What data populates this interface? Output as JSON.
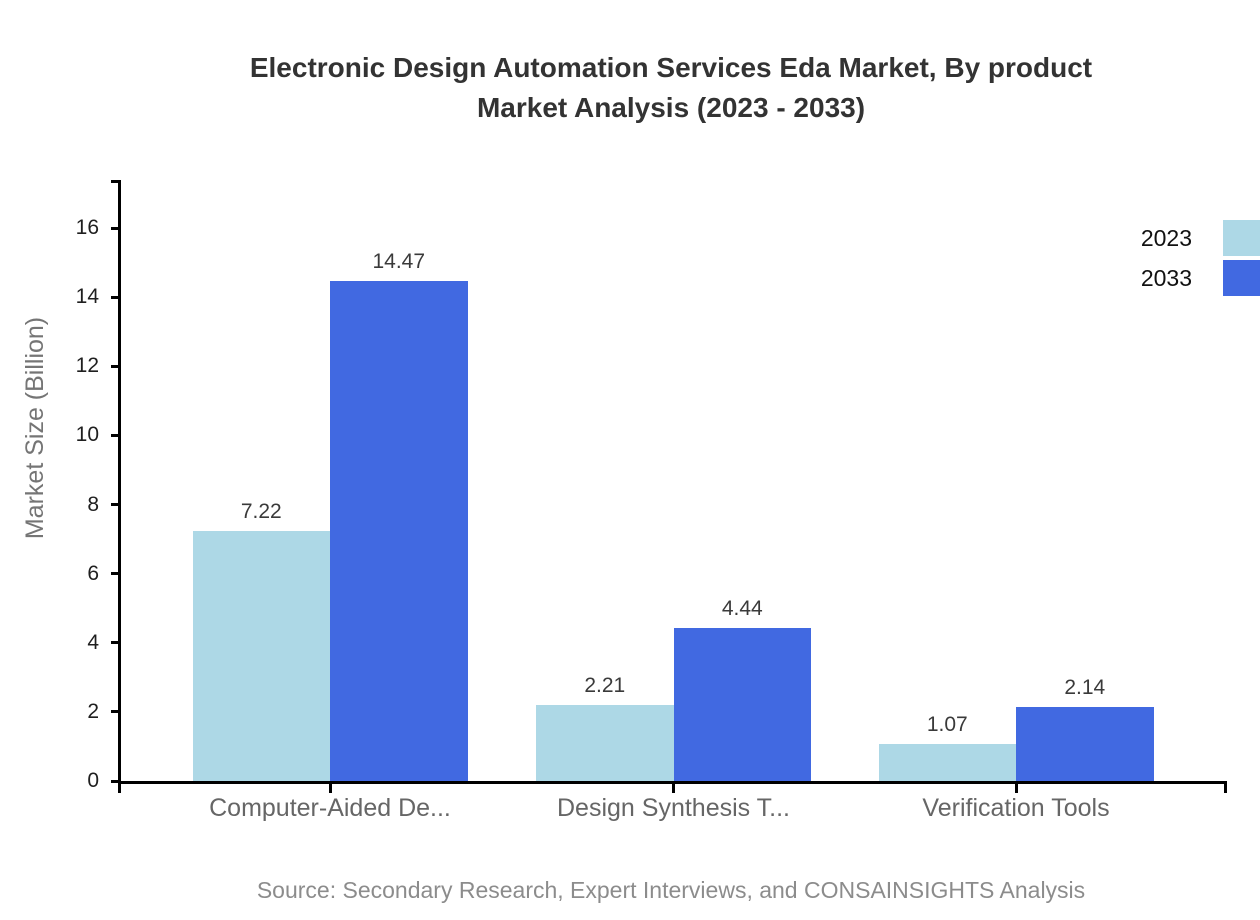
{
  "chart_data": {
    "type": "bar",
    "title": "Electronic Design Automation Services Eda Market, By product Market Analysis (2023 - 2033)",
    "title_line1": "Electronic Design Automation Services Eda Market, By product",
    "title_line2": "Market Analysis (2023 - 2033)",
    "ylabel": "Market Size (Billion)",
    "xlabel": "",
    "categories": [
      "Computer-Aided De...",
      "Design Synthesis T...",
      "Verification Tools"
    ],
    "series": [
      {
        "name": "2023",
        "color": "#ADD8E6",
        "values": [
          7.22,
          2.21,
          1.07
        ]
      },
      {
        "name": "2033",
        "color": "#4169E1",
        "values": [
          14.47,
          4.44,
          2.14
        ]
      }
    ],
    "value_labels": [
      "7.22",
      "14.47",
      "2.21",
      "4.44",
      "1.07",
      "2.14"
    ],
    "y_ticks": [
      0,
      2,
      4,
      6,
      8,
      10,
      12,
      14,
      16
    ],
    "ylim": [
      0,
      17.4
    ],
    "grid": false,
    "legend_position": "top-right",
    "axis_color": "#000000",
    "source": "Source: Secondary Research, Expert Interviews, and CONSAINSIGHTS Analysis"
  }
}
